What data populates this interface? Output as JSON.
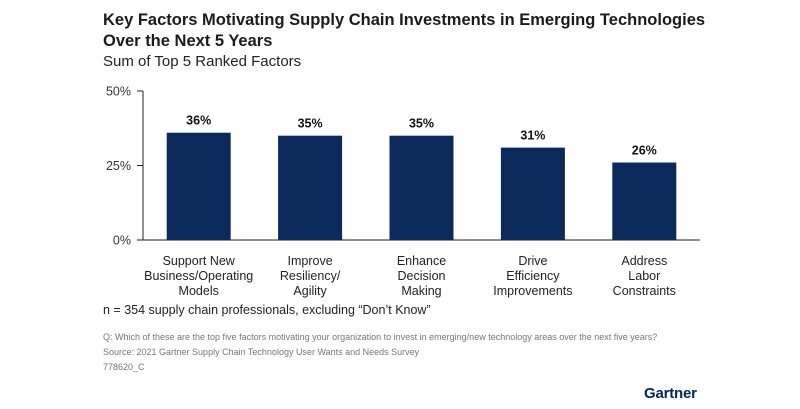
{
  "header": {
    "title": "Key Factors Motivating Supply Chain Investments in Emerging Technologies Over the Next 5 Years",
    "subtitle": "Sum of Top 5 Ranked Factors"
  },
  "chart_data": {
    "type": "bar",
    "title": "Key Factors Motivating Supply Chain Investments in Emerging Technologies Over the Next 5 Years",
    "subtitle": "Sum of Top 5 Ranked Factors",
    "categories": [
      [
        "Support New",
        "Business/Operating",
        "Models"
      ],
      [
        "Improve",
        "Resiliency/",
        "Agility"
      ],
      [
        "Enhance",
        "Decision",
        "Making"
      ],
      [
        "Drive",
        "Efficiency",
        "Improvements"
      ],
      [
        "Address",
        "Labor",
        "Constraints"
      ]
    ],
    "values": [
      36,
      35,
      35,
      31,
      26
    ],
    "data_labels": [
      "36%",
      "35%",
      "35%",
      "31%",
      "26%"
    ],
    "ylim": [
      0,
      50
    ],
    "yticks": [
      0,
      25,
      50
    ],
    "ytick_labels": [
      "0%",
      "25%",
      "50%"
    ],
    "xlabel": "",
    "ylabel": "",
    "bar_color": "#0b2a5b",
    "axis_color": "#222222",
    "grid": false
  },
  "footer": {
    "note": "n = 354 supply chain professionals, excluding “Don’t Know”",
    "question": "Q: Which of these are the top five factors motivating your organization to invest in emerging/new technology areas over the next five years?",
    "source": "Source: 2021 Gartner Supply Chain Technology User Wants and Needs Survey",
    "code": "778620_C",
    "brand": "Gartner"
  }
}
